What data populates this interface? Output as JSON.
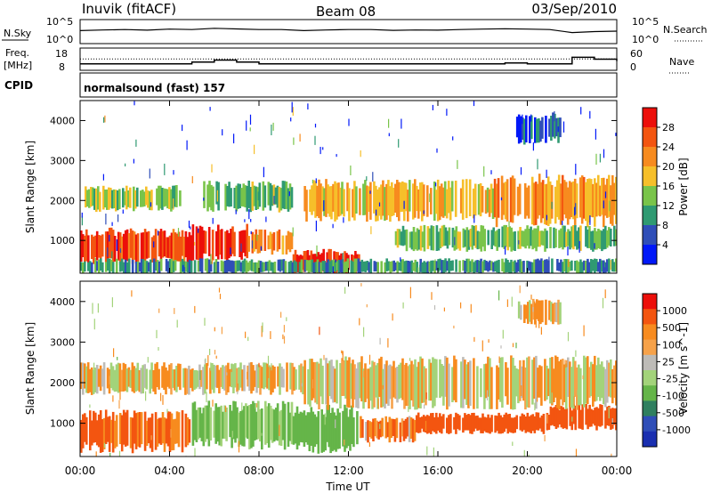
{
  "header": {
    "station": "Inuvik (fitACF)",
    "beam": "Beam 08",
    "date": "03/Sep/2010"
  },
  "panels": {
    "sky_label": "N.Sky",
    "sky_ticks": [
      "10^5",
      "10^0"
    ],
    "search_label": "N.Search",
    "freq_label_1": "Freq.",
    "freq_label_2": "[MHz]",
    "freq_ticks": [
      "18",
      "8"
    ],
    "nave_label": "Nave",
    "nave_ticks": [
      "60",
      "0"
    ],
    "cpid_label": "CPID",
    "cpid_text": "normalsound (fast) 157"
  },
  "colors": {
    "power_scale": [
      "#0018f8",
      "#2f4eb8",
      "#2f9a72",
      "#79c44a",
      "#f6bf2a",
      "#f78b1f",
      "#f35510",
      "#ec0f0a"
    ],
    "velocity_scale": [
      "#ec0f0a",
      "#f35510",
      "#f78b1f",
      "#f6a24a",
      "#bdbbb7",
      "#a3d37a",
      "#65b549",
      "#2f7f5f",
      "#2f4eb8",
      "#1a2fb0"
    ]
  },
  "chart_data": [
    {
      "type": "line",
      "title": "N.Sky / N.Search",
      "ylabel": "N.Sky",
      "y2label": "N.Search",
      "yticks": [
        "10^5",
        "10^0"
      ],
      "y2ticks": [
        "10^5",
        "10^0"
      ],
      "x": [
        "00:00",
        "01:00",
        "02:00",
        "03:00",
        "04:00",
        "05:00",
        "06:00",
        "07:00",
        "08:00",
        "09:00",
        "10:00",
        "11:00",
        "12:00",
        "13:00",
        "14:00",
        "15:00",
        "16:00",
        "17:00",
        "18:00",
        "19:00",
        "20:00",
        "21:00",
        "22:00",
        "23:00",
        "24:00"
      ],
      "series": [
        {
          "name": "N.Sky",
          "values": [
            0.55,
            0.58,
            0.6,
            0.57,
            0.62,
            0.6,
            0.66,
            0.63,
            0.6,
            0.6,
            0.55,
            0.58,
            0.6,
            0.6,
            0.56,
            0.58,
            0.57,
            0.6,
            0.62,
            0.64,
            0.62,
            0.6,
            0.45,
            0.5,
            0.52
          ]
        }
      ]
    },
    {
      "type": "line",
      "title": "Freq / Nave",
      "ylabel": "Freq. [MHz]",
      "y2label": "Nave",
      "ylim": [
        8,
        18
      ],
      "y2lim": [
        0,
        60
      ],
      "x": [
        "00:00",
        "01:00",
        "02:00",
        "03:00",
        "04:00",
        "05:00",
        "06:00",
        "07:00",
        "08:00",
        "09:00",
        "10:00",
        "11:00",
        "12:00",
        "13:00",
        "14:00",
        "15:00",
        "16:00",
        "17:00",
        "18:00",
        "19:00",
        "20:00",
        "21:00",
        "22:00",
        "23:00",
        "24:00"
      ],
      "series": [
        {
          "name": "Freq",
          "values": [
            10.5,
            10.5,
            10.5,
            10.5,
            10.5,
            11.5,
            12.5,
            11.5,
            10.5,
            10.5,
            10.5,
            10.5,
            10.5,
            10.5,
            10.5,
            10.5,
            10.5,
            10.5,
            10.5,
            11,
            10.5,
            10.5,
            14,
            13,
            12
          ]
        },
        {
          "name": "Nave",
          "values": [
            31,
            31,
            31,
            31,
            31,
            31,
            31,
            31,
            31,
            31,
            31,
            31,
            31,
            31,
            31,
            31,
            31,
            31,
            31,
            31,
            31,
            31,
            31,
            31,
            31
          ]
        }
      ]
    },
    {
      "type": "heatmap",
      "title": "Power",
      "xlabel": "",
      "ylabel": "Slant Range [km]",
      "colorbar_label": "Power [dB]",
      "colorbar_ticks": [
        "4",
        "8",
        "12",
        "16",
        "20",
        "24",
        "28"
      ],
      "x_range_hours": [
        0,
        24
      ],
      "ylim": [
        180,
        4500
      ],
      "yticks": [
        "1000",
        "2000",
        "3000",
        "4000"
      ],
      "bands": [
        {
          "t0": 0,
          "t1": 5,
          "r0": 500,
          "r1": 1200,
          "v": 27
        },
        {
          "t0": 5,
          "t1": 7.5,
          "r0": 600,
          "r1": 1300,
          "v": 29
        },
        {
          "t0": 7.5,
          "t1": 9.5,
          "r0": 700,
          "r1": 1200,
          "v": 22
        },
        {
          "t0": 9.5,
          "t1": 12.5,
          "r0": 200,
          "r1": 700,
          "v": 29
        },
        {
          "t0": 0.2,
          "t1": 4.5,
          "r0": 1800,
          "r1": 2300,
          "v": 14
        },
        {
          "t0": 5.5,
          "t1": 9.5,
          "r0": 1800,
          "r1": 2400,
          "v": 13
        },
        {
          "t0": 10,
          "t1": 18.5,
          "r0": 1600,
          "r1": 2400,
          "v": 19
        },
        {
          "t0": 18.5,
          "t1": 24,
          "r0": 1500,
          "r1": 2500,
          "v": 21
        },
        {
          "t0": 14,
          "t1": 24,
          "r0": 800,
          "r1": 1300,
          "v": 13
        },
        {
          "t0": 19.5,
          "t1": 21.5,
          "r0": 3500,
          "r1": 4100,
          "v": 6
        },
        {
          "t0": 0,
          "t1": 24,
          "r0": 200,
          "r1": 500,
          "v": 10
        }
      ]
    },
    {
      "type": "heatmap",
      "title": "Velocity",
      "xlabel": "Time UT",
      "ylabel": "Slant Range [km]",
      "colorbar_label": "Velocity [m s^-1]",
      "colorbar_ticks": [
        "1000",
        "500",
        "100",
        "25",
        "-25",
        "-100",
        "-500",
        "-1000"
      ],
      "xticks": [
        "00:00",
        "04:00",
        "08:00",
        "12:00",
        "16:00",
        "20:00",
        "00:00"
      ],
      "x_range_hours": [
        0,
        24
      ],
      "ylim": [
        180,
        4500
      ],
      "yticks": [
        "1000",
        "2000",
        "3000",
        "4000"
      ],
      "bands": [
        {
          "t0": 0,
          "t1": 5,
          "r0": 400,
          "r1": 1200,
          "v": -150
        },
        {
          "t0": 5,
          "t1": 9.5,
          "r0": 500,
          "r1": 1400,
          "v": 150
        },
        {
          "t0": 9.5,
          "t1": 12.5,
          "r0": 400,
          "r1": 1300,
          "v": 250
        },
        {
          "t0": 12.5,
          "t1": 15,
          "r0": 600,
          "r1": 1100,
          "v": -80
        },
        {
          "t0": 15,
          "t1": 21,
          "r0": 800,
          "r1": 1200,
          "v": -200
        },
        {
          "t0": 21,
          "t1": 24,
          "r0": 900,
          "r1": 1400,
          "v": -250
        },
        {
          "t0": 0,
          "t1": 4.5,
          "r0": 1800,
          "r1": 2400,
          "v": 0
        },
        {
          "t0": 4.5,
          "t1": 10,
          "r0": 1800,
          "r1": 2400,
          "v": 0
        },
        {
          "t0": 10,
          "t1": 24,
          "r0": 1500,
          "r1": 2500,
          "v": 0
        },
        {
          "t0": 19.5,
          "t1": 21.5,
          "r0": 3500,
          "r1": 4000,
          "v": 0
        }
      ]
    }
  ]
}
